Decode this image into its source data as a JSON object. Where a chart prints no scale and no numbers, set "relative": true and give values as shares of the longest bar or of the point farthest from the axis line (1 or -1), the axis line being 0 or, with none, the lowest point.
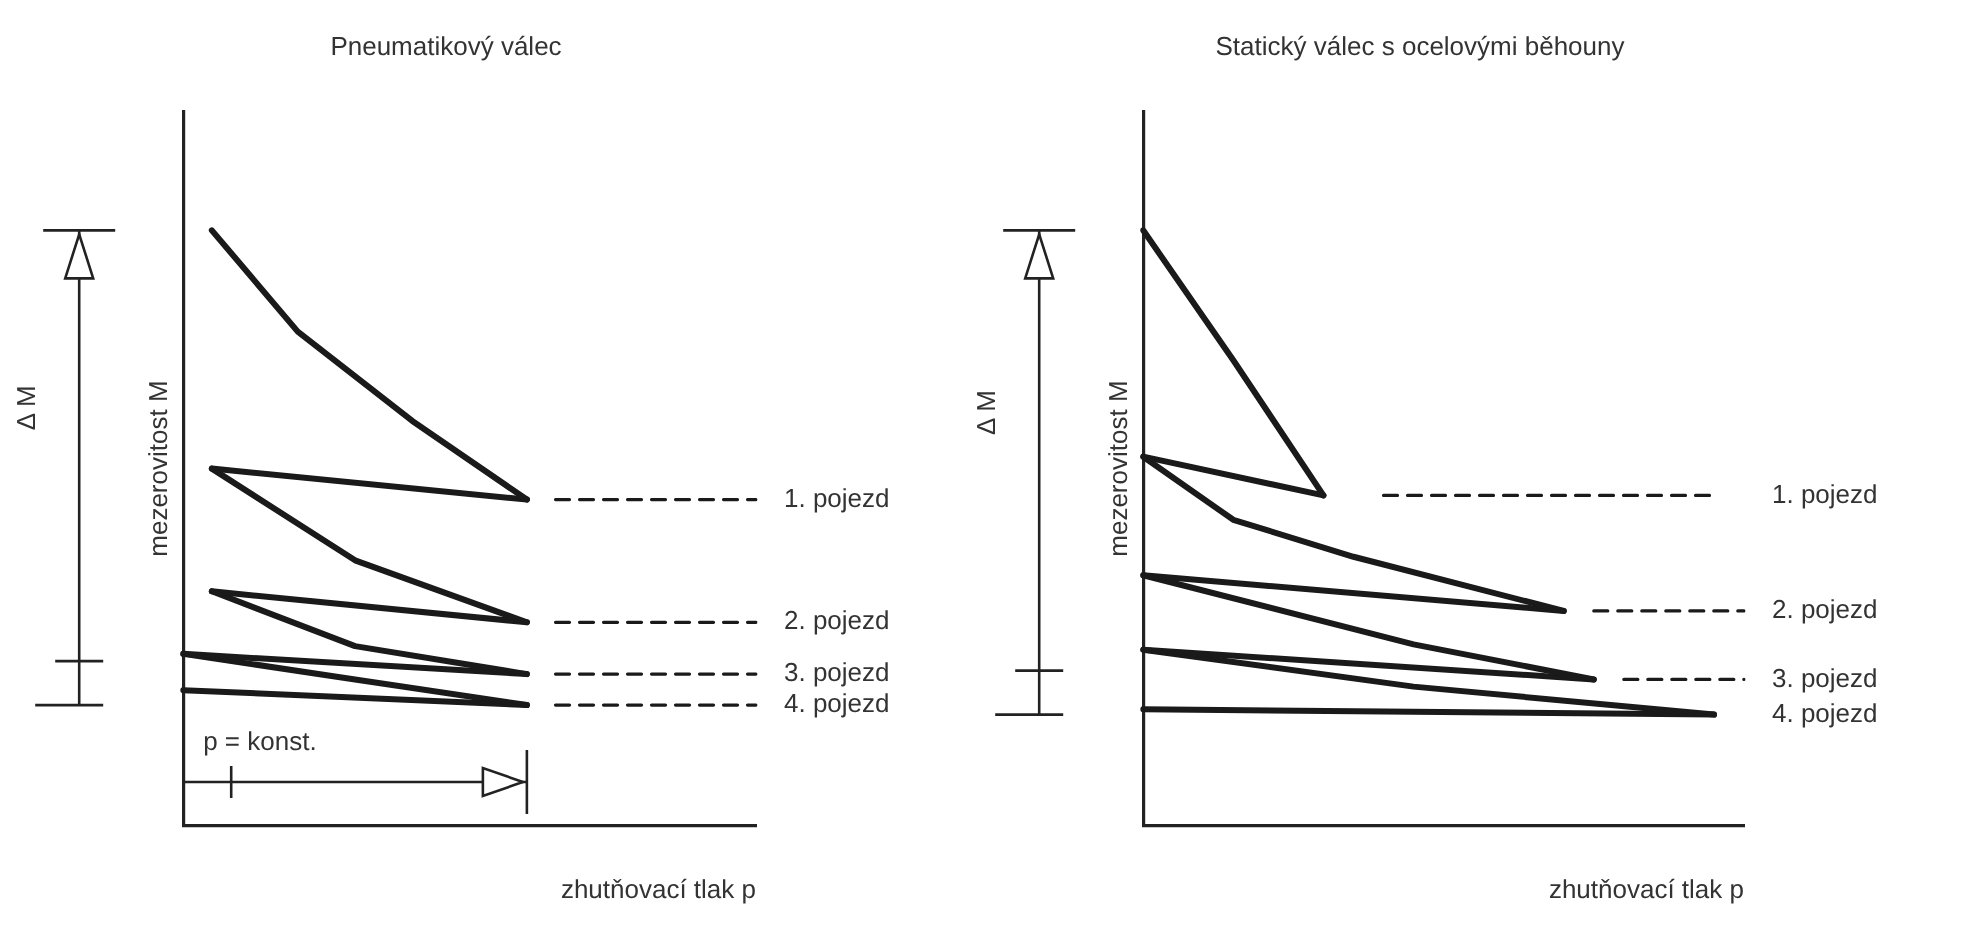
{
  "chart_data": [
    {
      "type": "line",
      "title": "Pneumatikový válec",
      "xlabel": "zhutňovací tlak p",
      "ylabel": "mezerovitost M",
      "relative": true,
      "marker": "none",
      "legend": false,
      "categories": [
        null,
        null,
        null,
        null,
        null,
        null,
        null,
        null,
        null,
        null,
        null,
        null,
        null,
        null,
        null,
        null,
        null,
        null,
        null,
        null,
        null
      ],
      "series": [
        {
          "color": "#1a1a1a",
          "line_style": "solid",
          "values": [
            null,
            1.0,
            null,
            null,
            0.83,
            null,
            null,
            null,
            0.68,
            null,
            null,
            null,
            0.548,
            null,
            null,
            null,
            null,
            null,
            null,
            null,
            null
          ]
        },
        {
          "color": "#1a1a1a",
          "line_style": "solid",
          "values": [
            null,
            0.6,
            null,
            null,
            null,
            null,
            null,
            null,
            null,
            null,
            null,
            null,
            0.548,
            null,
            null,
            null,
            null,
            null,
            null,
            null,
            null
          ]
        },
        {
          "color": "#1a1a1a",
          "line_style": "solid",
          "values": [
            null,
            0.6,
            null,
            null,
            null,
            null,
            0.446,
            null,
            null,
            null,
            null,
            null,
            0.342,
            null,
            null,
            null,
            null,
            null,
            null,
            null,
            null
          ]
        },
        {
          "color": "#1a1a1a",
          "line_style": "solid",
          "values": [
            null,
            0.394,
            null,
            null,
            null,
            null,
            null,
            null,
            null,
            null,
            null,
            null,
            0.342,
            null,
            null,
            null,
            null,
            null,
            null,
            null,
            null
          ]
        },
        {
          "color": "#1a1a1a",
          "line_style": "solid",
          "values": [
            null,
            0.394,
            null,
            null,
            null,
            null,
            0.302,
            null,
            null,
            null,
            null,
            null,
            0.255,
            null,
            null,
            null,
            null,
            null,
            null,
            null,
            null
          ]
        },
        {
          "color": "#1a1a1a",
          "line_style": "solid",
          "values": [
            0.289,
            null,
            null,
            null,
            null,
            null,
            null,
            null,
            null,
            null,
            null,
            null,
            0.255,
            null,
            null,
            null,
            null,
            null,
            null,
            null,
            null
          ]
        },
        {
          "color": "#1a1a1a",
          "line_style": "solid",
          "values": [
            0.289,
            null,
            null,
            null,
            null,
            null,
            0.246,
            null,
            null,
            null,
            null,
            null,
            0.203,
            null,
            null,
            null,
            null,
            null,
            null,
            null,
            null
          ]
        },
        {
          "color": "#1a1a1a",
          "line_style": "solid",
          "values": [
            0.228,
            null,
            null,
            null,
            null,
            null,
            null,
            null,
            null,
            null,
            null,
            null,
            0.203,
            null,
            null,
            null,
            null,
            null,
            null,
            null,
            null
          ]
        },
        {
          "name": "1. pojezd",
          "color": "#1a1a1a",
          "line_style": "dashed",
          "values": [
            null,
            null,
            null,
            null,
            null,
            null,
            null,
            null,
            null,
            null,
            null,
            null,
            null,
            0.548,
            0.548,
            0.548,
            0.548,
            0.548,
            0.548,
            0.548,
            0.548
          ]
        },
        {
          "name": "2. pojezd",
          "color": "#1a1a1a",
          "line_style": "dashed",
          "values": [
            null,
            null,
            null,
            null,
            null,
            null,
            null,
            null,
            null,
            null,
            null,
            null,
            null,
            0.342,
            0.342,
            0.342,
            0.342,
            0.342,
            0.342,
            0.342,
            0.342
          ]
        },
        {
          "name": "3. pojezd",
          "color": "#1a1a1a",
          "line_style": "dashed",
          "values": [
            null,
            null,
            null,
            null,
            null,
            null,
            null,
            null,
            null,
            null,
            null,
            null,
            null,
            0.255,
            0.255,
            0.255,
            0.255,
            0.255,
            0.255,
            0.255,
            0.255
          ]
        },
        {
          "name": "4. pojezd",
          "color": "#1a1a1a",
          "line_style": "dashed",
          "values": [
            null,
            null,
            null,
            null,
            null,
            null,
            null,
            null,
            null,
            null,
            null,
            null,
            null,
            0.203,
            0.203,
            0.203,
            0.203,
            0.203,
            0.203,
            0.203,
            0.203
          ]
        }
      ],
      "annotations": [
        "Δ M",
        "p = konst."
      ]
    },
    {
      "type": "line",
      "title": "Statický válec s ocelovými běhouny",
      "xlabel": "zhutňovací tlak p",
      "ylabel": "mezerovitost M",
      "relative": true,
      "marker": "none",
      "legend": false,
      "categories": [
        null,
        null,
        null,
        null,
        null,
        null,
        null,
        null,
        null,
        null,
        null,
        null,
        null,
        null,
        null,
        null,
        null,
        null,
        null,
        null,
        null
      ],
      "series": [
        {
          "color": "#1a1a1a",
          "line_style": "solid",
          "values": [
            1.0,
            null,
            null,
            0.782,
            null,
            null,
            0.555,
            null,
            null,
            null,
            null,
            null,
            null,
            null,
            null,
            null,
            null,
            null,
            null,
            null,
            null
          ]
        },
        {
          "color": "#1a1a1a",
          "line_style": "solid",
          "values": [
            0.62,
            null,
            null,
            null,
            null,
            null,
            0.555,
            null,
            null,
            null,
            null,
            null,
            null,
            null,
            null,
            null,
            null,
            null,
            null,
            null,
            null
          ]
        },
        {
          "color": "#1a1a1a",
          "line_style": "solid",
          "values": [
            0.62,
            null,
            null,
            0.514,
            null,
            null,
            null,
            0.452,
            null,
            null,
            null,
            null,
            null,
            null,
            0.361,
            null,
            null,
            null,
            null,
            null,
            null
          ]
        },
        {
          "color": "#1a1a1a",
          "line_style": "solid",
          "values": [
            0.421,
            null,
            null,
            null,
            null,
            null,
            null,
            null,
            null,
            null,
            null,
            null,
            null,
            null,
            0.361,
            null,
            null,
            null,
            null,
            null,
            null
          ]
        },
        {
          "color": "#1a1a1a",
          "line_style": "solid",
          "values": [
            0.421,
            null,
            null,
            null,
            null,
            null,
            null,
            null,
            null,
            0.305,
            null,
            null,
            null,
            null,
            null,
            0.246,
            null,
            null,
            null,
            null,
            null
          ]
        },
        {
          "color": "#1a1a1a",
          "line_style": "solid",
          "values": [
            0.296,
            null,
            null,
            null,
            null,
            null,
            null,
            null,
            null,
            null,
            null,
            null,
            null,
            null,
            null,
            0.246,
            null,
            null,
            null,
            null,
            null
          ]
        },
        {
          "color": "#1a1a1a",
          "line_style": "solid",
          "values": [
            0.296,
            null,
            null,
            null,
            null,
            null,
            null,
            null,
            null,
            0.234,
            null,
            null,
            null,
            null,
            null,
            null,
            null,
            null,
            null,
            0.187,
            null
          ]
        },
        {
          "name": "4. pojezd",
          "color": "#1a1a1a",
          "line_style": "solid",
          "values": [
            0.196,
            null,
            null,
            null,
            null,
            null,
            null,
            null,
            null,
            null,
            null,
            null,
            null,
            null,
            null,
            null,
            null,
            null,
            null,
            0.187,
            null
          ]
        },
        {
          "name": "1. pojezd",
          "color": "#1a1a1a",
          "line_style": "dashed",
          "values": [
            null,
            null,
            null,
            null,
            null,
            null,
            null,
            null,
            0.555,
            0.555,
            0.555,
            0.555,
            0.555,
            0.555,
            0.555,
            0.555,
            0.555,
            0.555,
            0.555,
            0.555,
            null
          ]
        },
        {
          "name": "2. pojezd",
          "color": "#1a1a1a",
          "line_style": "dashed",
          "values": [
            null,
            null,
            null,
            null,
            null,
            null,
            null,
            null,
            null,
            null,
            null,
            null,
            null,
            null,
            null,
            0.361,
            0.361,
            0.361,
            0.361,
            0.361,
            0.361
          ]
        },
        {
          "name": "3. pojezd",
          "color": "#1a1a1a",
          "line_style": "dashed",
          "values": [
            null,
            null,
            null,
            null,
            null,
            null,
            null,
            null,
            null,
            null,
            null,
            null,
            null,
            null,
            null,
            null,
            0.246,
            0.246,
            0.246,
            0.246,
            0.246
          ]
        }
      ],
      "annotations": [
        "Δ M"
      ]
    }
  ]
}
